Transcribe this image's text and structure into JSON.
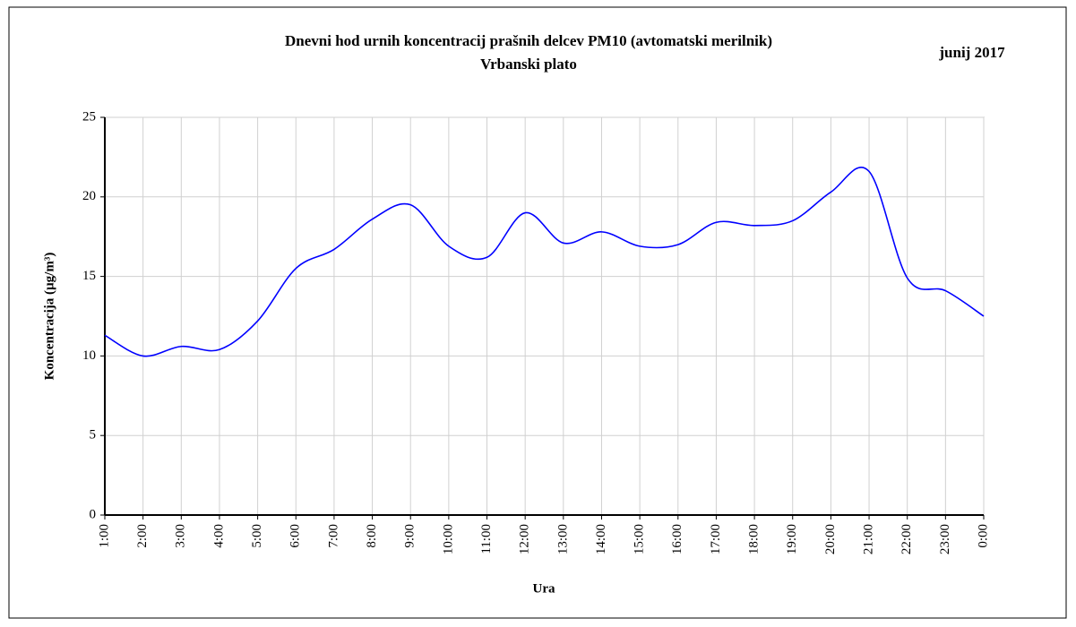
{
  "chart_data": {
    "type": "line",
    "title": "Dnevni hod urnih koncentracij prašnih delcev PM10 (avtomatski merilnik)",
    "subtitle": "Vrbanski plato",
    "annotation": "junij 2017",
    "x_label": "Ura",
    "y_label": "Koncentracija  (µg/m³)",
    "categories": [
      "1:00",
      "2:00",
      "3:00",
      "4:00",
      "5:00",
      "6:00",
      "7:00",
      "8:00",
      "9:00",
      "10:00",
      "11:00",
      "12:00",
      "13:00",
      "14:00",
      "15:00",
      "16:00",
      "17:00",
      "18:00",
      "19:00",
      "20:00",
      "21:00",
      "22:00",
      "23:00",
      "0:00"
    ],
    "series": [
      {
        "color": "#0000ff",
        "values": [
          11.3,
          10.0,
          10.6,
          10.4,
          12.2,
          15.5,
          16.7,
          18.6,
          19.5,
          16.9,
          16.2,
          19.0,
          17.1,
          17.8,
          16.9,
          17.0,
          18.4,
          18.2,
          18.5,
          20.3,
          21.6,
          14.9,
          14.1,
          12.5
        ]
      }
    ],
    "ylim": [
      0,
      25
    ],
    "yticks": [
      0,
      5,
      10,
      15,
      20,
      25
    ],
    "grid": true,
    "smooth": true
  }
}
